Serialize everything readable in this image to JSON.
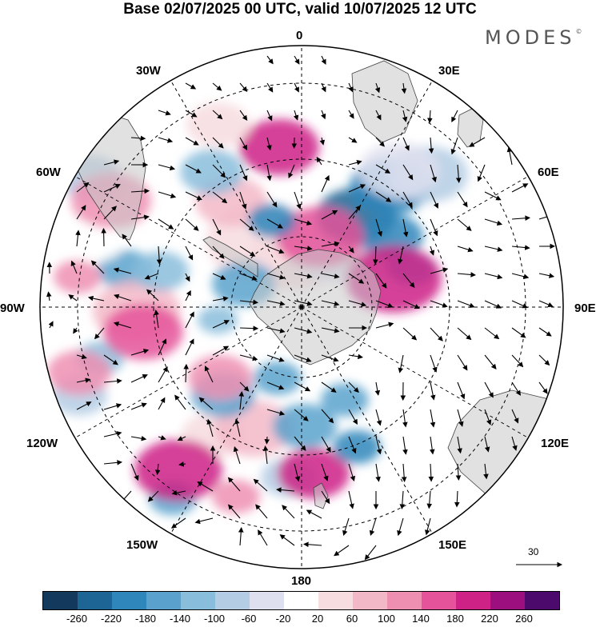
{
  "title": "Base 02/07/2025 00 UTC, valid 10/07/2025 12 UTC",
  "brand": "MODES",
  "brand_mark": "©",
  "longitude_labels": {
    "top": "0",
    "top_left": "30W",
    "top_right": "30E",
    "upper_left": "60W",
    "upper_right": "60E",
    "left": "90W",
    "right": "90E",
    "lower_left": "120W",
    "lower_right": "120E",
    "bottom_left": "150W",
    "bottom_right": "150E",
    "bottom": "180"
  },
  "vector_reference": "30",
  "colorbar": {
    "colors": [
      "#133a5c",
      "#1d6594",
      "#2f86bb",
      "#5aa2cd",
      "#89bddc",
      "#b4cce4",
      "#dfe0ef",
      "#ffffff",
      "#f7dce0",
      "#f3b8c8",
      "#ee8fb2",
      "#e5549a",
      "#ce2286",
      "#9b107e",
      "#4b0a6c"
    ],
    "ticks": [
      "-260",
      "-220",
      "-180",
      "-140",
      "-100",
      "-60",
      "-20",
      "20",
      "60",
      "100",
      "140",
      "180",
      "220",
      "260"
    ]
  }
}
